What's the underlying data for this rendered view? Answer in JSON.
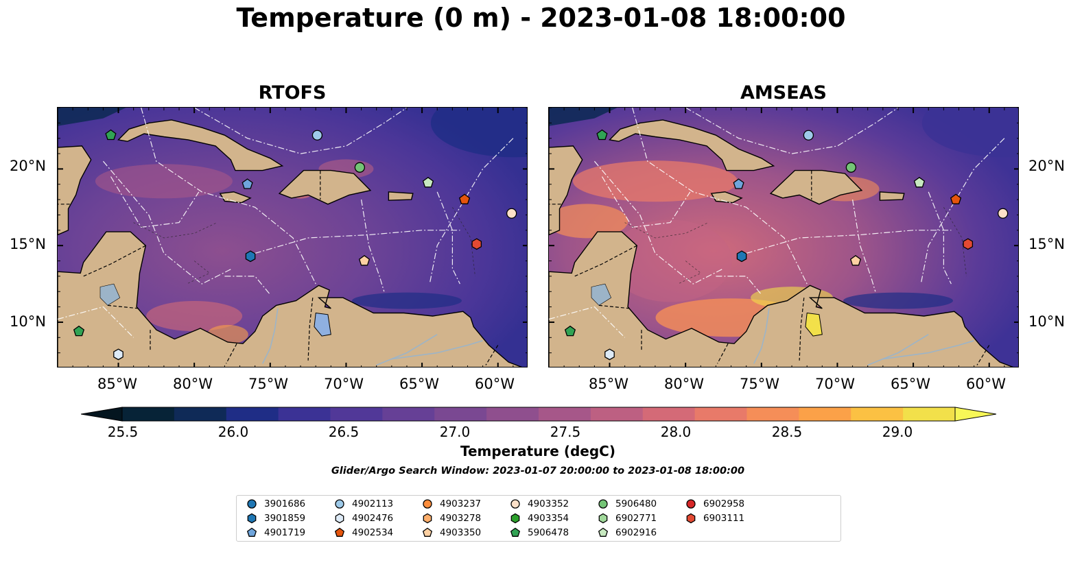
{
  "title": "Temperature (0 m) - 2023-01-08 18:00:00",
  "panels": [
    {
      "title": "RTOFS"
    },
    {
      "title": "AMSEAS"
    }
  ],
  "lat_labels": [
    "20°N",
    "15°N",
    "10°N"
  ],
  "lon_labels": [
    "85°W",
    "80°W",
    "75°W",
    "70°W",
    "65°W",
    "60°W"
  ],
  "colorbar": {
    "label": "Temperature (degC)",
    "min": 25.25,
    "max": 29.25,
    "ticks": [
      "25.5",
      "26.0",
      "26.5",
      "27.0",
      "27.5",
      "28.0",
      "28.5",
      "29.0"
    ],
    "colors": [
      "#072337",
      "#0f2a57",
      "#1f2d86",
      "#3b3295",
      "#513898",
      "#664096",
      "#7a4892",
      "#8f4f8e",
      "#a65789",
      "#bd6082",
      "#d46a77",
      "#e87a69",
      "#f58e58",
      "#fba148",
      "#fbc143",
      "#f2e04a"
    ]
  },
  "search_window": "Glider/Argo Search Window: 2023-01-07 20:00:00 to 2023-01-08 18:00:00",
  "legend": [
    {
      "id": "3901686",
      "color": "#1f77b4",
      "shape": "circle"
    },
    {
      "id": "3901859",
      "color": "#1f77b4",
      "shape": "hexagon"
    },
    {
      "id": "4901719",
      "color": "#6fa5dc",
      "shape": "pentagon"
    },
    {
      "id": "4902113",
      "color": "#9ecae9",
      "shape": "circle"
    },
    {
      "id": "4902476",
      "color": "#deebf7",
      "shape": "hexagon"
    },
    {
      "id": "4902534",
      "color": "#e6550d",
      "shape": "pentagon"
    },
    {
      "id": "4903237",
      "color": "#fd8d3c",
      "shape": "circle"
    },
    {
      "id": "4903278",
      "color": "#fdae6b",
      "shape": "hexagon"
    },
    {
      "id": "4903350",
      "color": "#fdd0a2",
      "shape": "pentagon"
    },
    {
      "id": "4903352",
      "color": "#fde0c8",
      "shape": "circle"
    },
    {
      "id": "4903354",
      "color": "#2ca02c",
      "shape": "hexagon"
    },
    {
      "id": "5906478",
      "color": "#31a354",
      "shape": "pentagon"
    },
    {
      "id": "5906480",
      "color": "#74c476",
      "shape": "circle"
    },
    {
      "id": "6902771",
      "color": "#a1d99b",
      "shape": "hexagon"
    },
    {
      "id": "6902916",
      "color": "#c7e9c0",
      "shape": "pentagon"
    },
    {
      "id": "6902958",
      "color": "#d62728",
      "shape": "circle"
    },
    {
      "id": "6903111",
      "color": "#e34a33",
      "shape": "hexagon"
    }
  ],
  "map": {
    "lon_range": [
      -89,
      -58
    ],
    "lat_range": [
      7,
      24
    ],
    "land_color": "#d2b48c",
    "floats": [
      {
        "lon": -85.5,
        "lat": 22.2,
        "color": "#31a354",
        "shape": "pentagon"
      },
      {
        "lon": -71.9,
        "lat": 22.2,
        "color": "#9ecae9",
        "shape": "circle"
      },
      {
        "lon": -69.1,
        "lat": 20.1,
        "color": "#74c476",
        "shape": "circle"
      },
      {
        "lon": -64.6,
        "lat": 19.1,
        "color": "#c7e9c0",
        "shape": "pentagon"
      },
      {
        "lon": -76.5,
        "lat": 19.0,
        "color": "#6fa5dc",
        "shape": "pentagon"
      },
      {
        "lon": -62.2,
        "lat": 18.0,
        "color": "#e6550d",
        "shape": "pentagon"
      },
      {
        "lon": -59.1,
        "lat": 17.1,
        "color": "#fde0c8",
        "shape": "circle"
      },
      {
        "lon": -61.4,
        "lat": 15.1,
        "color": "#e34a33",
        "shape": "hexagon"
      },
      {
        "lon": -68.8,
        "lat": 14.0,
        "color": "#fdd0a2",
        "shape": "pentagon"
      },
      {
        "lon": -76.3,
        "lat": 14.3,
        "color": "#1f77b4",
        "shape": "hexagon"
      },
      {
        "lon": -87.6,
        "lat": 9.4,
        "color": "#31a354",
        "shape": "pentagon"
      },
      {
        "lon": -85.0,
        "lat": 7.9,
        "color": "#deebf7",
        "shape": "hexagon"
      }
    ]
  }
}
